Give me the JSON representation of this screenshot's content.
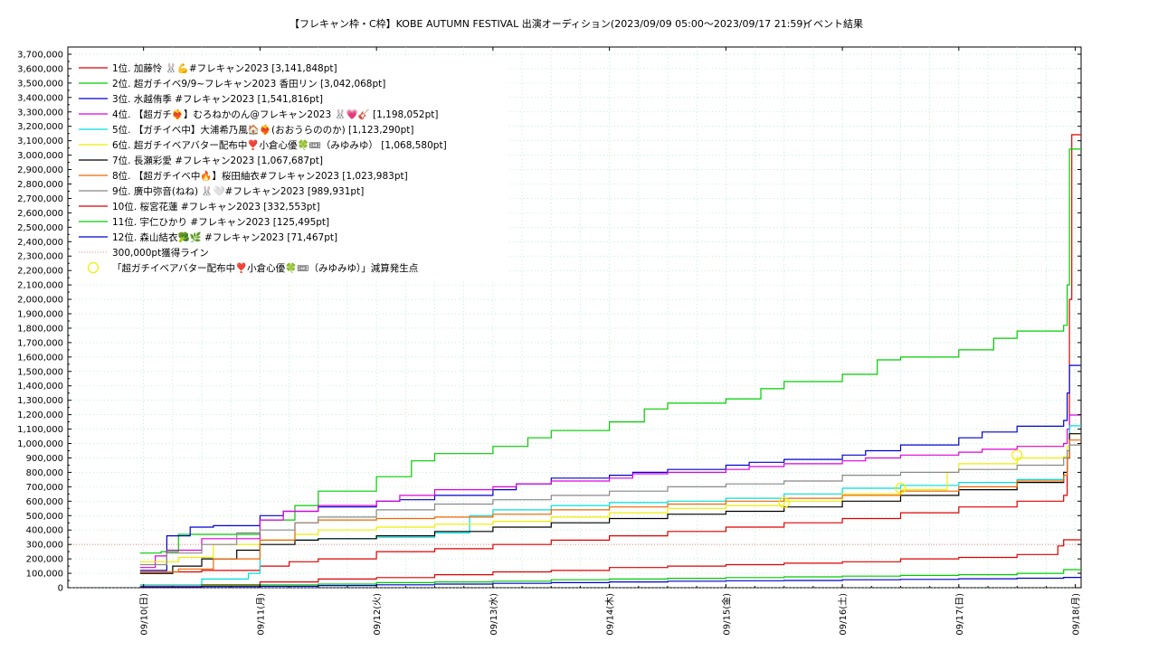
{
  "chart_data": {
    "type": "line",
    "title": "【フレキャン枠・C枠】KOBE AUTUMN FESTIVAL 出演オーディション(2023/09/09 05:00〜2023/09/17 21:59)",
    "subtitle": "イベント結果",
    "ylim": [
      0,
      3750000
    ],
    "y_ticks": [
      0,
      100000,
      200000,
      300000,
      400000,
      500000,
      600000,
      700000,
      800000,
      900000,
      1000000,
      1100000,
      1200000,
      1300000,
      1400000,
      1500000,
      1600000,
      1700000,
      1800000,
      1900000,
      2000000,
      2100000,
      2200000,
      2300000,
      2400000,
      2500000,
      2600000,
      2700000,
      2800000,
      2900000,
      3000000,
      3100000,
      3200000,
      3300000,
      3400000,
      3500000,
      3600000,
      3700000
    ],
    "y_tick_labels": [
      "0",
      "100,000",
      "200,000",
      "300,000",
      "400,000",
      "500,000",
      "600,000",
      "700,000",
      "800,000",
      "900,000",
      "1,000,000",
      "1,100,000",
      "1,200,000",
      "1,300,000",
      "1,400,000",
      "1,500,000",
      "1,600,000",
      "1,700,000",
      "1,800,000",
      "1,900,000",
      "2,000,000",
      "2,100,000",
      "2,200,000",
      "2,300,000",
      "2,400,000",
      "2,500,000",
      "2,600,000",
      "2,700,000",
      "2,800,000",
      "2,900,000",
      "3,000,000",
      "3,100,000",
      "3,200,000",
      "3,300,000",
      "3,400,000",
      "3,500,000",
      "3,600,000",
      "3,700,000"
    ],
    "xlim": [
      -0.65,
      8.05
    ],
    "x_ticks": [
      0,
      1,
      2,
      3,
      4,
      5,
      6,
      7,
      8
    ],
    "x_tick_labels": [
      "09/10(日)",
      "09/11(月)",
      "09/12(火)",
      "09/13(水)",
      "09/14(木)",
      "09/15(金)",
      "09/16(土)",
      "09/17(日)",
      "09/18(月)"
    ],
    "legend_placement": "top-left",
    "grid": true,
    "series": [
      {
        "name": "1位. 加藤怜 🐰💪#フレキャン2023 [3,141,848pt]",
        "color": "#dd0000",
        "x": [
          -0.03,
          0.25,
          0.5,
          1.0,
          1.25,
          1.5,
          2.0,
          2.5,
          3.0,
          3.5,
          4.0,
          4.5,
          5.0,
          5.5,
          6.0,
          6.5,
          7.0,
          7.5,
          7.9,
          7.93,
          7.95,
          7.97,
          8.05
        ],
        "y": [
          100000,
          110000,
          120000,
          150000,
          180000,
          200000,
          250000,
          270000,
          300000,
          330000,
          360000,
          390000,
          420000,
          450000,
          480000,
          520000,
          560000,
          600000,
          640000,
          900000,
          2000000,
          3141848,
          3141848
        ]
      },
      {
        "name": "2位. 超ガチイベ9/9~フレキャン2023 香田リン [3,042,068pt]",
        "color": "#00cc00",
        "x": [
          -0.03,
          0.15,
          0.3,
          0.5,
          1.0,
          1.3,
          1.5,
          2.0,
          2.3,
          2.5,
          3.0,
          3.3,
          3.5,
          4.0,
          4.3,
          4.5,
          5.0,
          5.3,
          5.5,
          6.0,
          6.3,
          6.5,
          7.0,
          7.3,
          7.5,
          7.9,
          7.93,
          7.95,
          8.05
        ],
        "y": [
          240000,
          250000,
          370000,
          370000,
          470000,
          570000,
          670000,
          770000,
          880000,
          930000,
          980000,
          1040000,
          1090000,
          1150000,
          1240000,
          1280000,
          1310000,
          1380000,
          1430000,
          1480000,
          1580000,
          1600000,
          1650000,
          1730000,
          1780000,
          1820000,
          2100000,
          3042068,
          3042068
        ]
      },
      {
        "name": "3位. 水越侑季 #フレキャン2023 [1,541,816pt]",
        "color": "#0000cc",
        "x": [
          -0.03,
          0.2,
          0.4,
          0.6,
          1.0,
          1.2,
          1.5,
          2.0,
          2.2,
          2.5,
          3.0,
          3.2,
          3.5,
          4.0,
          4.2,
          4.5,
          5.0,
          5.2,
          5.5,
          6.0,
          6.2,
          6.5,
          7.0,
          7.2,
          7.5,
          7.9,
          7.93,
          7.95,
          8.05
        ],
        "y": [
          120000,
          360000,
          420000,
          430000,
          500000,
          530000,
          560000,
          600000,
          610000,
          640000,
          680000,
          720000,
          760000,
          780000,
          800000,
          820000,
          850000,
          870000,
          890000,
          920000,
          950000,
          990000,
          1040000,
          1080000,
          1120000,
          1160000,
          1350000,
          1541816,
          1541816
        ]
      },
      {
        "name": "4位. 【超ガチ❤️‍🔥】むろねかのん@フレキャン2023 🐰💗🎸 [1,198,052pt]",
        "color": "#dd00dd",
        "x": [
          -0.03,
          0.1,
          0.2,
          0.5,
          1.0,
          1.2,
          1.5,
          2.0,
          2.2,
          2.5,
          3.0,
          3.2,
          3.5,
          4.0,
          4.2,
          4.5,
          5.0,
          5.2,
          5.5,
          6.0,
          6.2,
          6.5,
          7.0,
          7.2,
          7.5,
          7.9,
          7.93,
          7.95,
          8.05
        ],
        "y": [
          140000,
          220000,
          260000,
          340000,
          470000,
          530000,
          570000,
          600000,
          640000,
          680000,
          700000,
          720000,
          740000,
          760000,
          790000,
          800000,
          820000,
          840000,
          860000,
          880000,
          900000,
          920000,
          940000,
          960000,
          980000,
          1000000,
          1100000,
          1198052,
          1198052
        ]
      },
      {
        "name": "5位. 【ガチイベ中】大浦希乃風🏠❤️‍🔥(おおうらののか) [1,123,290pt]",
        "color": "#00dddd",
        "x": [
          -0.03,
          0.5,
          0.9,
          1.0,
          1.5,
          2.0,
          2.5,
          2.8,
          3.0,
          3.5,
          4.0,
          4.5,
          5.0,
          5.5,
          6.0,
          6.5,
          7.0,
          7.5,
          7.9,
          7.93,
          7.95,
          8.05
        ],
        "y": [
          20000,
          60000,
          100000,
          330000,
          340000,
          350000,
          380000,
          500000,
          540000,
          570000,
          590000,
          600000,
          620000,
          650000,
          690000,
          710000,
          730000,
          750000,
          780000,
          950000,
          1123290,
          1123290
        ]
      },
      {
        "name": "6位. 超ガチイベアバター配布中❣️小倉心優🍀🎟（みゆみゆ） [1,068,580pt]",
        "color": "#eeee00",
        "x": [
          -0.03,
          0.3,
          0.6,
          1.0,
          1.3,
          1.5,
          2.0,
          2.5,
          3.0,
          3.5,
          4.0,
          4.5,
          5.0,
          5.5,
          6.0,
          6.5,
          6.9,
          7.0,
          7.5,
          7.9,
          7.93,
          7.95,
          8.05
        ],
        "y": [
          180000,
          210000,
          300000,
          330000,
          370000,
          400000,
          420000,
          440000,
          460000,
          490000,
          520000,
          550000,
          570000,
          600000,
          650000,
          680000,
          800000,
          860000,
          900000,
          910000,
          980000,
          1068580,
          1068580
        ]
      },
      {
        "name": "7位. 長瀬彩愛 #フレキャン2023 [1,067,687pt]",
        "color": "#000000",
        "x": [
          -0.03,
          0.25,
          0.5,
          0.8,
          1.0,
          1.3,
          1.5,
          2.0,
          2.5,
          3.0,
          3.5,
          4.0,
          4.5,
          5.0,
          5.5,
          6.0,
          6.5,
          7.0,
          7.5,
          7.9,
          7.93,
          7.95,
          8.05
        ],
        "y": [
          100000,
          150000,
          200000,
          260000,
          300000,
          330000,
          340000,
          360000,
          390000,
          420000,
          450000,
          480000,
          510000,
          530000,
          560000,
          600000,
          640000,
          680000,
          730000,
          800000,
          900000,
          1067687,
          1067687
        ]
      },
      {
        "name": "8位. 【超ガチイベ中🔥】桜田紬衣#フレキャン2023 [1,023,983pt]",
        "color": "#ee6600",
        "x": [
          -0.03,
          0.3,
          0.6,
          1.0,
          1.3,
          1.5,
          2.0,
          2.5,
          3.0,
          3.5,
          4.0,
          4.5,
          5.0,
          5.5,
          6.0,
          6.5,
          7.0,
          7.5,
          7.9,
          7.93,
          7.95,
          8.05
        ],
        "y": [
          110000,
          130000,
          200000,
          330000,
          450000,
          470000,
          480000,
          490000,
          510000,
          540000,
          560000,
          580000,
          600000,
          620000,
          640000,
          670000,
          700000,
          740000,
          780000,
          900000,
          1023983,
          1023983
        ]
      },
      {
        "name": "9位. 廣中弥音(ねね) 🐰🤍#フレキャン2023 [989,931pt]",
        "color": "#888888",
        "x": [
          -0.03,
          0.2,
          0.5,
          0.8,
          1.0,
          1.3,
          1.5,
          2.0,
          2.5,
          3.0,
          3.5,
          4.0,
          4.5,
          5.0,
          5.5,
          6.0,
          6.5,
          7.0,
          7.5,
          7.9,
          7.93,
          7.95,
          8.05
        ],
        "y": [
          160000,
          240000,
          300000,
          380000,
          400000,
          450000,
          490000,
          540000,
          580000,
          610000,
          640000,
          670000,
          700000,
          720000,
          740000,
          780000,
          800000,
          820000,
          850000,
          900000,
          950000,
          989931,
          989931
        ]
      },
      {
        "name": "10位. 桜宮花蓮 #フレキャン2023 [332,553pt]",
        "color": "#dd0000",
        "x": [
          -0.03,
          0.5,
          1.0,
          1.5,
          2.0,
          2.5,
          3.0,
          3.5,
          4.0,
          4.5,
          5.0,
          5.5,
          6.0,
          6.5,
          7.0,
          7.5,
          7.85,
          7.9,
          8.05
        ],
        "y": [
          10000,
          20000,
          40000,
          60000,
          70000,
          90000,
          110000,
          120000,
          140000,
          150000,
          160000,
          170000,
          180000,
          200000,
          210000,
          230000,
          290000,
          332553,
          332553
        ]
      },
      {
        "name": "11位. 宇仁ひかり #フレキャン2023 [125,495pt]",
        "color": "#00cc00",
        "x": [
          -0.03,
          0.5,
          1.0,
          1.5,
          2.0,
          2.5,
          3.0,
          3.5,
          4.0,
          4.5,
          5.0,
          5.5,
          6.0,
          6.5,
          7.0,
          7.5,
          7.9,
          8.05
        ],
        "y": [
          5000,
          15000,
          20000,
          25000,
          35000,
          40000,
          45000,
          55000,
          60000,
          65000,
          70000,
          75000,
          80000,
          85000,
          90000,
          100000,
          125495,
          125495
        ]
      },
      {
        "name": "12位. 森山結衣🥦🌿 #フレキャン2023 [71,467pt]",
        "color": "#0000cc",
        "x": [
          -0.03,
          0.5,
          1.0,
          1.5,
          2.0,
          2.5,
          3.0,
          3.5,
          4.0,
          4.5,
          5.0,
          5.5,
          6.0,
          6.5,
          7.0,
          7.5,
          7.9,
          8.05
        ],
        "y": [
          3000,
          8000,
          10000,
          15000,
          20000,
          25000,
          30000,
          35000,
          40000,
          45000,
          48000,
          50000,
          55000,
          58000,
          62000,
          66000,
          71467,
          71467
        ]
      }
    ],
    "threshold_line": {
      "name": "300,000pt獲得ライン",
      "color": "#ee8888",
      "y": 300000
    },
    "markers": {
      "name": "「超ガチイベアバター配布中❣️小倉心優🍀🎟（みゆみゆ）」減算発生点",
      "color": "#eeee00",
      "points": [
        {
          "x": 5.5,
          "y": 590000
        },
        {
          "x": 6.5,
          "y": 690000
        },
        {
          "x": 7.5,
          "y": 920000
        }
      ]
    }
  }
}
